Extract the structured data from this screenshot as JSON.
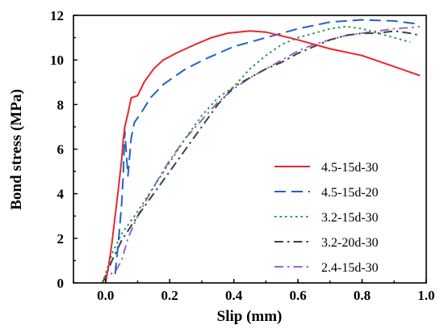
{
  "chart_data": {
    "type": "line",
    "xlabel": "Slip (mm)",
    "ylabel": "Bond stress (MPa)",
    "xlim": [
      -0.1,
      1.0
    ],
    "ylim": [
      0,
      12
    ],
    "xticks": [
      "0.0",
      "0.2",
      "0.4",
      "0.6",
      "0.8",
      "1.0"
    ],
    "yticks": [
      "0",
      "2",
      "4",
      "6",
      "8",
      "10",
      "12"
    ],
    "grid": false,
    "legend_position": "center-right",
    "series": [
      {
        "name": "4.5-15d-30",
        "color": "#e8262c",
        "dash": "solid",
        "points": [
          [
            0.0,
            0.0
          ],
          [
            0.01,
            0.8
          ],
          [
            0.02,
            1.8
          ],
          [
            0.03,
            3.0
          ],
          [
            0.04,
            4.2
          ],
          [
            0.05,
            5.5
          ],
          [
            0.055,
            6.4
          ],
          [
            0.06,
            7.0
          ],
          [
            0.07,
            7.6
          ],
          [
            0.08,
            8.3
          ],
          [
            0.1,
            8.4
          ],
          [
            0.12,
            9.0
          ],
          [
            0.15,
            9.6
          ],
          [
            0.18,
            10.0
          ],
          [
            0.22,
            10.3
          ],
          [
            0.28,
            10.7
          ],
          [
            0.33,
            11.0
          ],
          [
            0.38,
            11.2
          ],
          [
            0.45,
            11.3
          ],
          [
            0.5,
            11.25
          ],
          [
            0.6,
            10.9
          ],
          [
            0.7,
            10.5
          ],
          [
            0.8,
            10.2
          ],
          [
            0.9,
            9.7
          ],
          [
            0.98,
            9.3
          ]
        ]
      },
      {
        "name": "4.5-15d-20",
        "color": "#1e63c8",
        "dash": "long-dash",
        "points": [
          [
            0.03,
            0.4
          ],
          [
            0.04,
            1.8
          ],
          [
            0.05,
            3.5
          ],
          [
            0.055,
            4.8
          ],
          [
            0.06,
            6.8
          ],
          [
            0.07,
            4.8
          ],
          [
            0.08,
            6.5
          ],
          [
            0.09,
            7.2
          ],
          [
            0.11,
            7.6
          ],
          [
            0.14,
            8.3
          ],
          [
            0.18,
            8.9
          ],
          [
            0.25,
            9.6
          ],
          [
            0.32,
            10.1
          ],
          [
            0.4,
            10.6
          ],
          [
            0.5,
            11.0
          ],
          [
            0.6,
            11.4
          ],
          [
            0.7,
            11.7
          ],
          [
            0.8,
            11.8
          ],
          [
            0.9,
            11.75
          ],
          [
            0.98,
            11.6
          ]
        ]
      },
      {
        "name": "3.2-15d-30",
        "color": "#1f9a4a",
        "dash": "dot",
        "points": [
          [
            -0.01,
            0.0
          ],
          [
            0.0,
            0.4
          ],
          [
            0.02,
            1.3
          ],
          [
            0.05,
            2.2
          ],
          [
            0.1,
            3.2
          ],
          [
            0.15,
            4.3
          ],
          [
            0.2,
            5.4
          ],
          [
            0.25,
            6.5
          ],
          [
            0.3,
            7.5
          ],
          [
            0.35,
            8.3
          ],
          [
            0.4,
            8.8
          ],
          [
            0.45,
            9.6
          ],
          [
            0.5,
            10.2
          ],
          [
            0.55,
            10.7
          ],
          [
            0.6,
            11.0
          ],
          [
            0.65,
            11.2
          ],
          [
            0.7,
            11.4
          ],
          [
            0.75,
            11.5
          ],
          [
            0.8,
            11.4
          ],
          [
            0.85,
            11.2
          ],
          [
            0.9,
            11.0
          ],
          [
            0.95,
            10.8
          ]
        ]
      },
      {
        "name": "3.2-20d-30",
        "color": "#404040",
        "dash": "dash-dot",
        "points": [
          [
            -0.01,
            0.0
          ],
          [
            0.0,
            0.3
          ],
          [
            0.02,
            1.0
          ],
          [
            0.05,
            1.9
          ],
          [
            0.1,
            3.0
          ],
          [
            0.15,
            4.0
          ],
          [
            0.2,
            5.0
          ],
          [
            0.25,
            6.0
          ],
          [
            0.3,
            7.0
          ],
          [
            0.35,
            8.0
          ],
          [
            0.4,
            8.8
          ],
          [
            0.45,
            9.2
          ],
          [
            0.5,
            9.6
          ],
          [
            0.55,
            9.9
          ],
          [
            0.6,
            10.3
          ],
          [
            0.65,
            10.6
          ],
          [
            0.7,
            10.9
          ],
          [
            0.75,
            11.1
          ],
          [
            0.8,
            11.2
          ],
          [
            0.85,
            11.2
          ],
          [
            0.9,
            11.3
          ],
          [
            0.95,
            11.2
          ],
          [
            0.98,
            11.1
          ]
        ]
      },
      {
        "name": "2.4-15d-30",
        "color": "#9966cc",
        "dash": "dash-dot",
        "points": [
          [
            -0.01,
            0.0
          ],
          [
            0.0,
            0.3
          ],
          [
            0.03,
            0.5
          ],
          [
            0.05,
            1.0
          ],
          [
            0.07,
            2.0
          ],
          [
            0.1,
            3.0
          ],
          [
            0.13,
            3.8
          ],
          [
            0.17,
            4.8
          ],
          [
            0.2,
            5.5
          ],
          [
            0.25,
            6.5
          ],
          [
            0.3,
            7.3
          ],
          [
            0.35,
            8.1
          ],
          [
            0.4,
            8.7
          ],
          [
            0.45,
            9.2
          ],
          [
            0.5,
            9.6
          ],
          [
            0.55,
            10.0
          ],
          [
            0.6,
            10.4
          ],
          [
            0.65,
            10.7
          ],
          [
            0.7,
            10.9
          ],
          [
            0.75,
            11.1
          ],
          [
            0.8,
            11.2
          ],
          [
            0.85,
            11.3
          ],
          [
            0.9,
            11.4
          ],
          [
            0.95,
            11.45
          ],
          [
            0.98,
            11.5
          ]
        ]
      }
    ]
  }
}
